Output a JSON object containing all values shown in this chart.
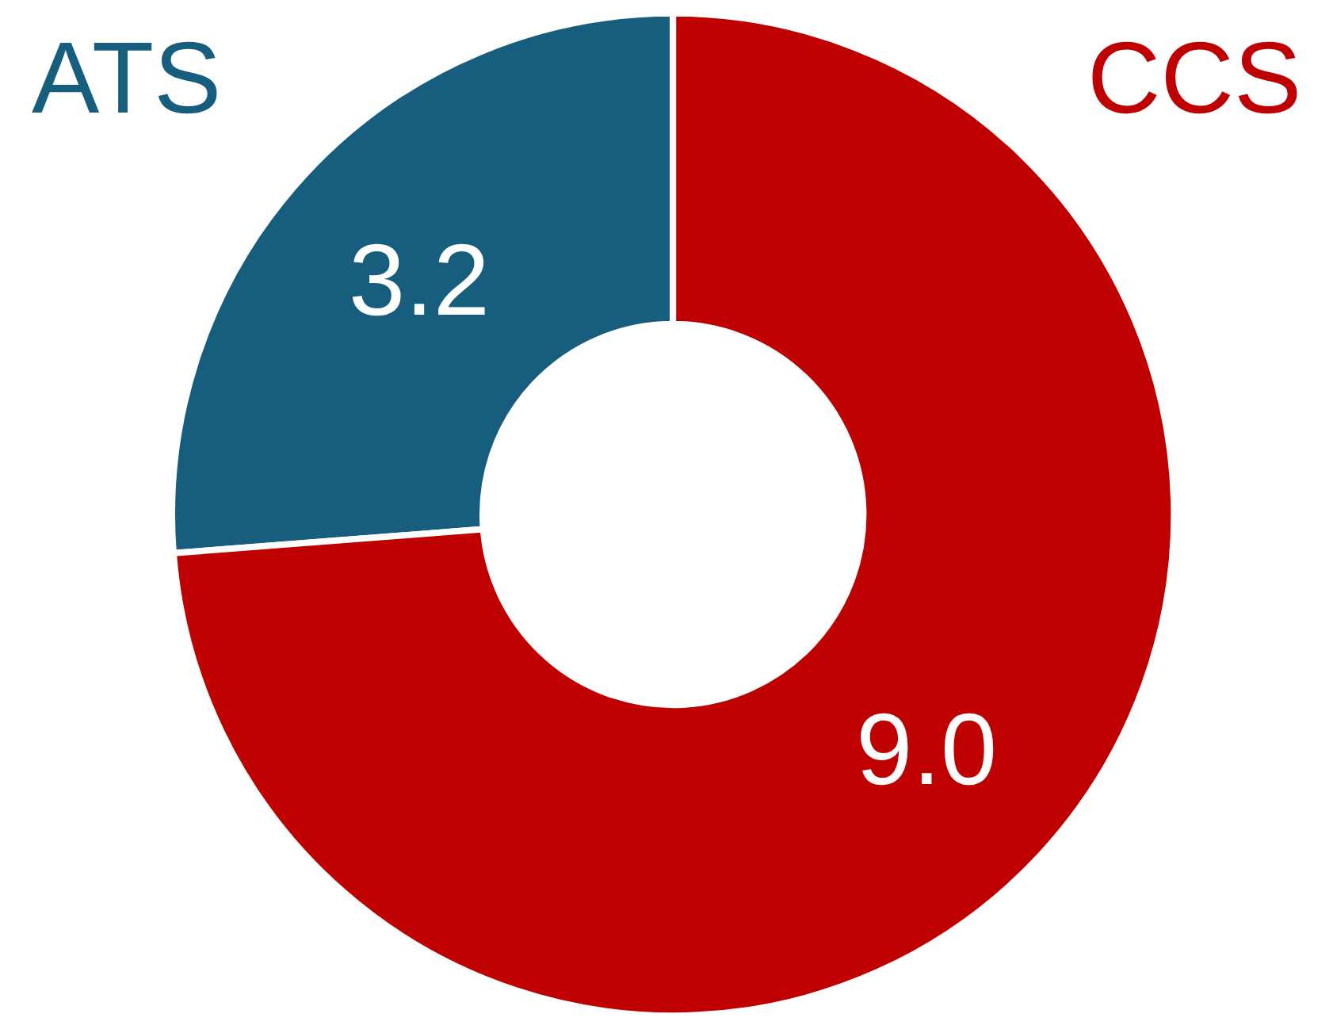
{
  "chart_data": {
    "type": "donut",
    "categories": [
      "ATS",
      "CCS"
    ],
    "values": [
      3.2,
      9.0
    ],
    "colors": [
      "#175e7e",
      "#be0000"
    ],
    "data_labels": true,
    "value_labels": [
      "3.2",
      "9.0"
    ],
    "legend": false
  }
}
